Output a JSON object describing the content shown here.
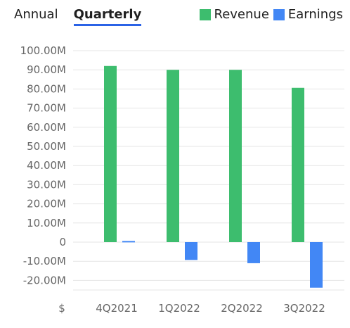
{
  "tabs": [
    {
      "label": "Annual",
      "active": false
    },
    {
      "label": "Quarterly",
      "active": true
    }
  ],
  "legend": [
    {
      "label": "Revenue",
      "color": "#3dbd6e"
    },
    {
      "label": "Earnings",
      "color": "#4287f5"
    }
  ],
  "colors": {
    "accent": "#2b63e6",
    "grid": "#e6e6e6",
    "tick": "#666666"
  },
  "chart_data": {
    "type": "bar",
    "categories": [
      "4Q2021",
      "1Q2022",
      "2Q2022",
      "3Q2022"
    ],
    "series": [
      {
        "name": "Revenue",
        "values": [
          92000000,
          90000000,
          90000000,
          80600000
        ]
      },
      {
        "name": "Earnings",
        "values": [
          600000,
          -9300000,
          -11000000,
          -23800000
        ]
      }
    ],
    "ylim": [
      -25000000,
      100000000
    ],
    "yticks": [
      100000000,
      90000000,
      80000000,
      70000000,
      60000000,
      50000000,
      40000000,
      30000000,
      20000000,
      10000000,
      0,
      -10000000,
      -20000000
    ],
    "ytick_labels": [
      "100.00M",
      "90.00M",
      "80.00M",
      "70.00M",
      "60.00M",
      "50.00M",
      "40.00M",
      "30.00M",
      "20.00M",
      "10.00M",
      "0",
      "-10.00M",
      "-20.00M"
    ],
    "y_unit_label": "$",
    "grid": true,
    "legend_position": "top-right"
  }
}
